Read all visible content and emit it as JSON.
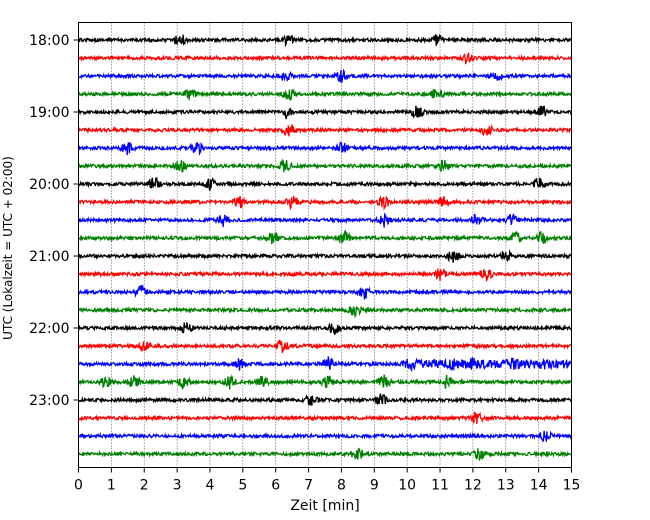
{
  "chart_data": {
    "type": "line",
    "title": "",
    "xlabel": "Zeit  [min]",
    "ylabel": "UTC (Lokalzeit = UTC + 02:00)",
    "xlim": [
      0,
      15
    ],
    "x_ticks": [
      "0",
      "1",
      "2",
      "3",
      "4",
      "5",
      "6",
      "7",
      "8",
      "9",
      "10",
      "11",
      "12",
      "13",
      "14",
      "15"
    ],
    "y_ticks": [
      "18:00",
      "19:00",
      "20:00",
      "21:00",
      "22:00",
      "23:00"
    ],
    "trace_times": [
      "18:00",
      "18:15",
      "18:30",
      "18:45",
      "19:00",
      "19:15",
      "19:30",
      "19:45",
      "20:00",
      "20:15",
      "20:30",
      "20:45",
      "21:00",
      "21:15",
      "21:30",
      "21:45",
      "22:00",
      "22:15",
      "22:30",
      "22:45",
      "23:00",
      "23:15",
      "23:30",
      "23:45"
    ],
    "trace_colors": [
      "#000000",
      "#ff0000",
      "#0000ff",
      "#008000"
    ],
    "grid": "vertical dotted at each minute",
    "series": [
      {
        "time": "18:00",
        "color": "#000000",
        "events": [
          3.1,
          6.4,
          10.9
        ]
      },
      {
        "time": "18:15",
        "color": "#ff0000",
        "events": [
          11.8
        ]
      },
      {
        "time": "18:30",
        "color": "#0000ff",
        "events": [
          6.3,
          8.0,
          12.7
        ]
      },
      {
        "time": "18:45",
        "color": "#008000",
        "events": [
          3.4,
          6.4,
          10.9
        ]
      },
      {
        "time": "19:00",
        "color": "#000000",
        "events": [
          6.3,
          10.3,
          14.1
        ]
      },
      {
        "time": "19:15",
        "color": "#ff0000",
        "events": [
          6.4,
          12.4
        ]
      },
      {
        "time": "19:30",
        "color": "#0000ff",
        "events": [
          1.5,
          3.6,
          8.0
        ]
      },
      {
        "time": "19:45",
        "color": "#008000",
        "events": [
          3.1,
          6.3,
          11.1
        ]
      },
      {
        "time": "20:00",
        "color": "#000000",
        "events": [
          2.3,
          4.0,
          14.0
        ]
      },
      {
        "time": "20:15",
        "color": "#ff0000",
        "events": [
          4.9,
          6.5,
          9.3,
          11.1
        ]
      },
      {
        "time": "20:30",
        "color": "#0000ff",
        "events": [
          4.4,
          9.3,
          12.1,
          13.2
        ]
      },
      {
        "time": "20:45",
        "color": "#008000",
        "events": [
          5.9,
          8.1,
          13.3,
          14.1
        ]
      },
      {
        "time": "21:00",
        "color": "#000000",
        "events": [
          11.4,
          13.0
        ]
      },
      {
        "time": "21:15",
        "color": "#ff0000",
        "events": [
          11.0,
          12.4
        ]
      },
      {
        "time": "21:30",
        "color": "#0000ff",
        "events": [
          1.9,
          8.7
        ]
      },
      {
        "time": "21:45",
        "color": "#008000",
        "events": [
          8.4
        ]
      },
      {
        "time": "22:00",
        "color": "#000000",
        "events": [
          3.3,
          7.8
        ]
      },
      {
        "time": "22:15",
        "color": "#ff0000",
        "events": [
          2.0,
          6.2
        ]
      },
      {
        "time": "22:30",
        "color": "#0000ff",
        "events": [
          4.9,
          7.6,
          10.1,
          11.4,
          12.0,
          13.2,
          14.2
        ]
      },
      {
        "time": "22:45",
        "color": "#008000",
        "events": [
          0.8,
          1.7,
          3.2,
          4.6,
          5.6,
          7.6,
          9.3,
          11.2
        ]
      },
      {
        "time": "23:00",
        "color": "#000000",
        "events": [
          7.1,
          9.2
        ]
      },
      {
        "time": "23:15",
        "color": "#ff0000",
        "events": [
          12.1
        ]
      },
      {
        "time": "23:30",
        "color": "#0000ff",
        "events": [
          14.2
        ]
      },
      {
        "time": "23:45",
        "color": "#008000",
        "events": [
          8.5,
          12.2
        ]
      }
    ]
  }
}
